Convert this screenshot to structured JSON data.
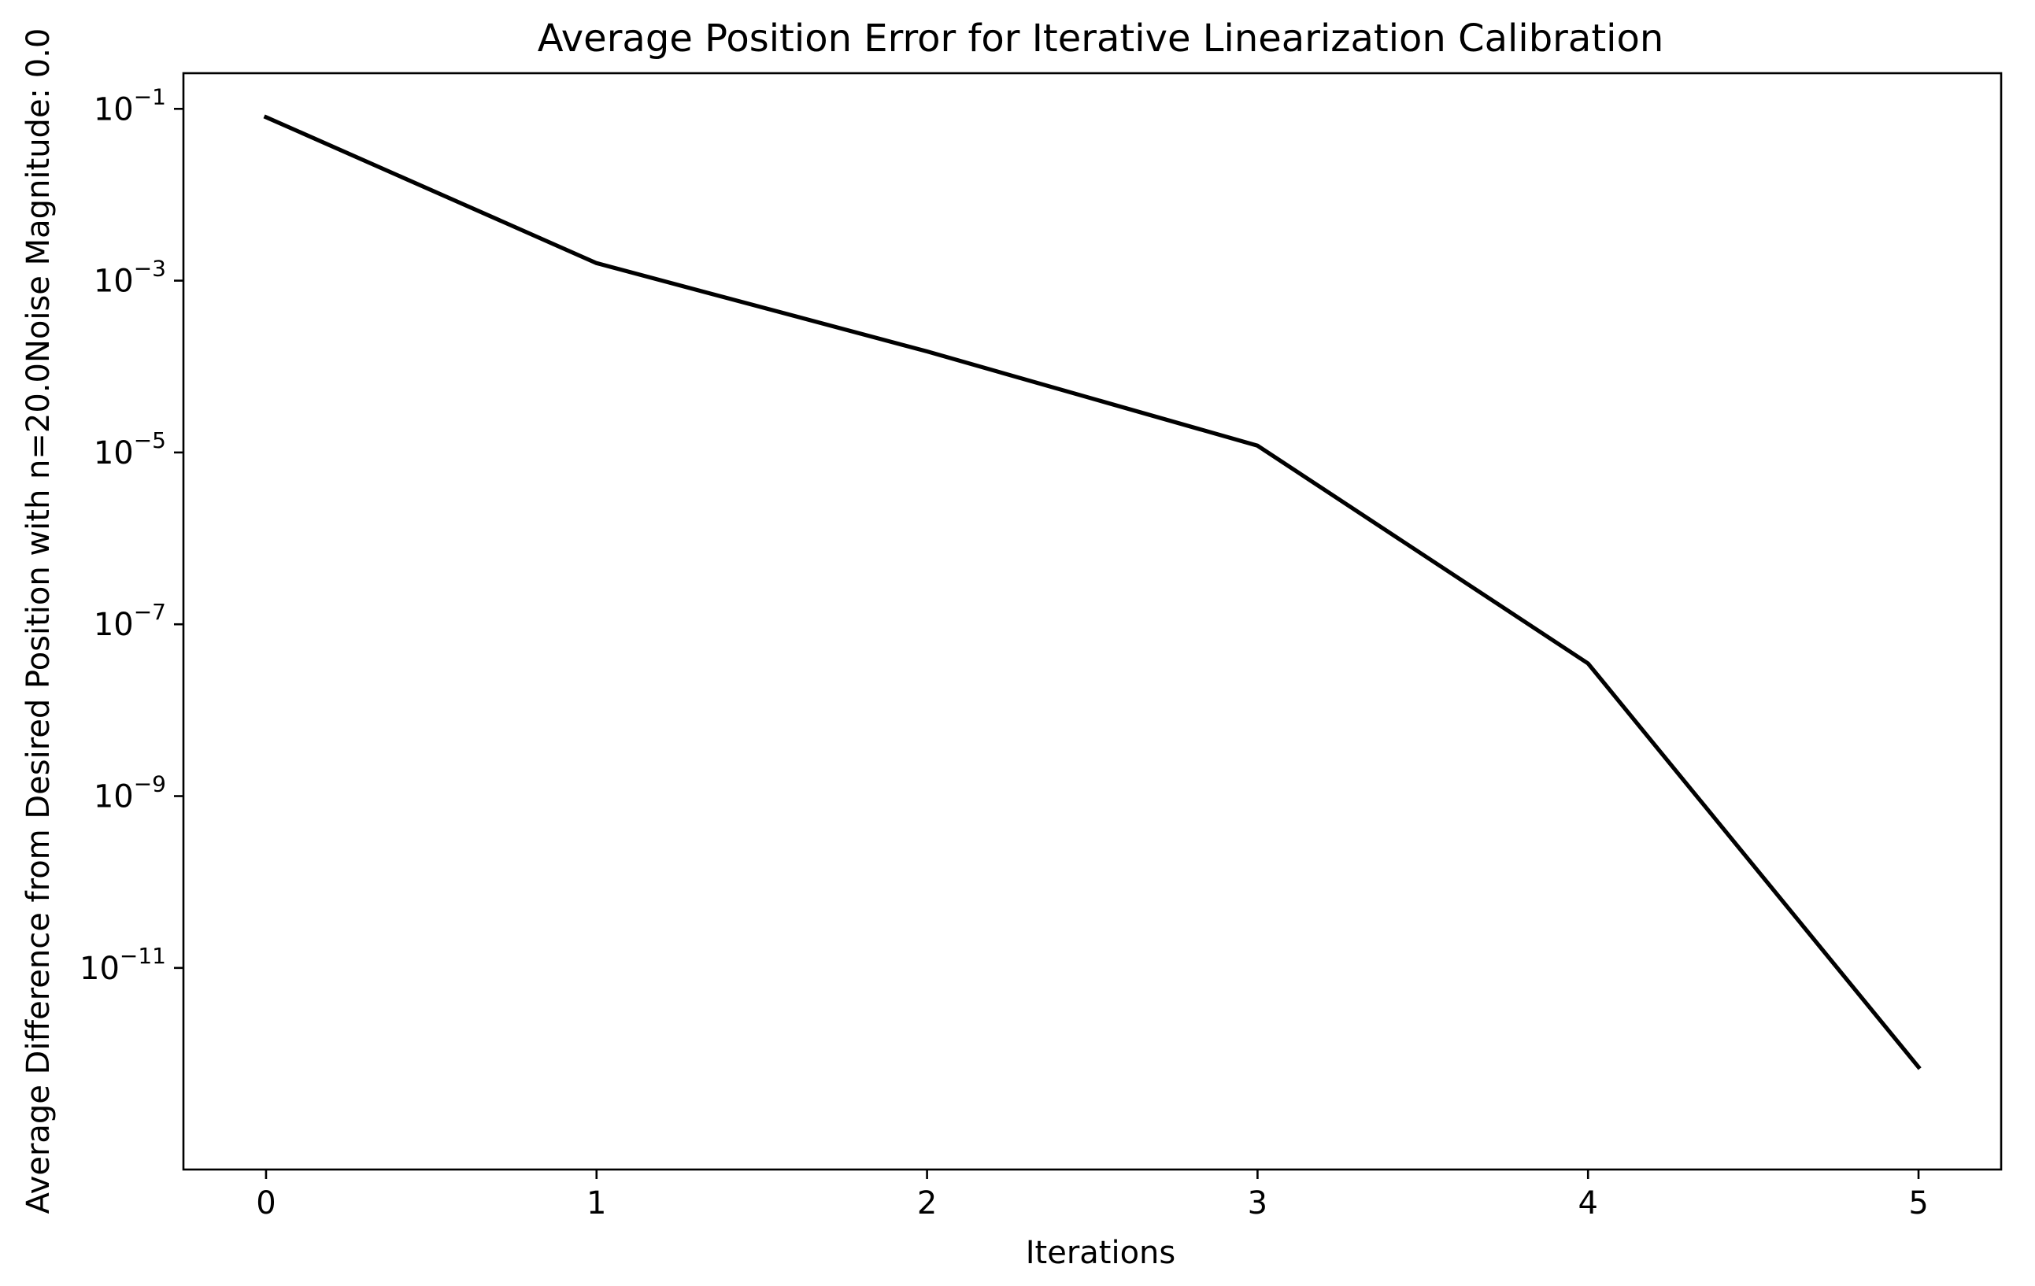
{
  "chart_data": {
    "type": "line",
    "title": "Average Position Error for Iterative Linearization Calibration",
    "xlabel": "Iterations",
    "ylabel": "Average Difference from Desired Position with n=20.0Noise Magnitude: 0.0",
    "yscale": "log",
    "x": [
      0,
      1,
      2,
      3,
      4,
      5
    ],
    "series": [
      {
        "values": [
          0.08,
          0.0016,
          0.00015,
          1.2e-05,
          3.5e-08,
          7e-13
        ],
        "color": "#000000"
      }
    ],
    "xlim": [
      -0.25,
      5.25
    ],
    "ylim": [
      4.5e-14,
      0.26
    ],
    "xticks": [
      0,
      1,
      2,
      3,
      4,
      5
    ],
    "xtick_labels": [
      "0",
      "1",
      "2",
      "3",
      "4",
      "5"
    ],
    "yticks": [
      0.1,
      0.001,
      1e-05,
      1e-07,
      1e-09,
      1e-11
    ],
    "ytick_labels": [
      {
        "base": "10",
        "exp": "−1"
      },
      {
        "base": "10",
        "exp": "−3"
      },
      {
        "base": "10",
        "exp": "−5"
      },
      {
        "base": "10",
        "exp": "−7"
      },
      {
        "base": "10",
        "exp": "−9"
      },
      {
        "base": "10",
        "exp": "−11"
      }
    ],
    "grid": false,
    "legend": "none"
  }
}
